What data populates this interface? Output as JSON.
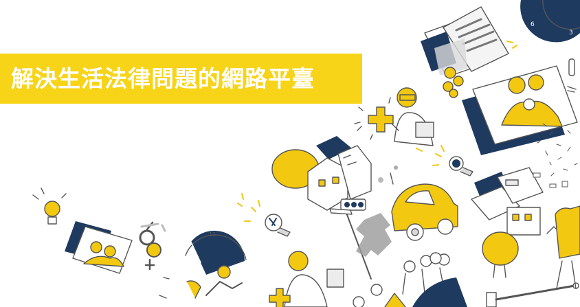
{
  "hero": {
    "headline": "解決生活法律問題的網路平臺",
    "banner_color": "#f7d418",
    "accent_yellow": "#f2c811",
    "accent_navy": "#1f3a5f",
    "ink_grey": "#6b6b6b"
  },
  "illustration": {
    "icons": [
      "lightbulb-icon",
      "medical-cross-icon",
      "house-icon",
      "car-icon",
      "traffic-light-icon",
      "family-photo-icon",
      "document-icon",
      "coin-icon",
      "clock-icon",
      "gender-symbol-icon",
      "doctor-figure",
      "people-group-figure",
      "gavel-icon"
    ]
  }
}
